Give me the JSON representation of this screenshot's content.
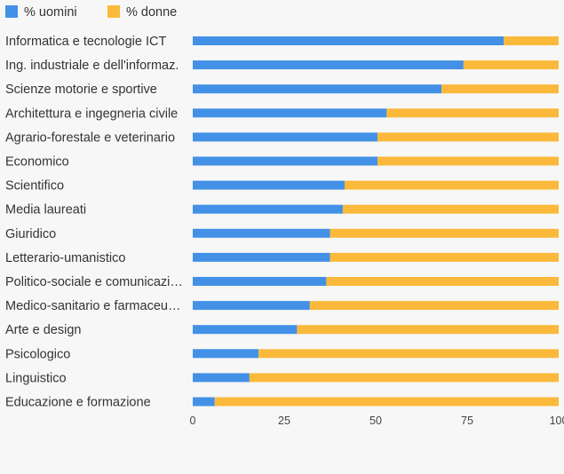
{
  "chart_data": {
    "type": "bar",
    "orientation": "horizontal",
    "stacked": true,
    "legend_position": "top-left",
    "grid": false,
    "xlim": [
      0,
      100
    ],
    "x_ticks": [
      0,
      25,
      50,
      75,
      100
    ],
    "colors": {
      "uomini": "#4391e6",
      "donne": "#fbb93b"
    },
    "categories": [
      "Informatica e tecnologie ICT",
      "Ing. industriale e dell'informaz.",
      "Scienze motorie e sportive",
      "Architettura e ingegneria civile",
      "Agrario-forestale e veterinario",
      "Economico",
      "Scientifico",
      "Media laureati",
      "Giuridico",
      "Letterario-umanistico",
      "Politico-sociale e comunicazi…",
      "Medico-sanitario e farmaceu…",
      "Arte e design",
      "Psicologico",
      "Linguistico",
      "Educazione e formazione"
    ],
    "series": [
      {
        "name": "% uomini",
        "values": [
          85,
          74,
          68,
          53,
          50.5,
          50.5,
          41.5,
          41,
          37.5,
          37.5,
          36.5,
          32,
          28.5,
          18,
          15.5,
          6
        ]
      },
      {
        "name": "% donne",
        "values": [
          15,
          26,
          32,
          47,
          49.5,
          49.5,
          58.5,
          59,
          62.5,
          62.5,
          63.5,
          68,
          71.5,
          82,
          84.5,
          94
        ]
      }
    ]
  }
}
